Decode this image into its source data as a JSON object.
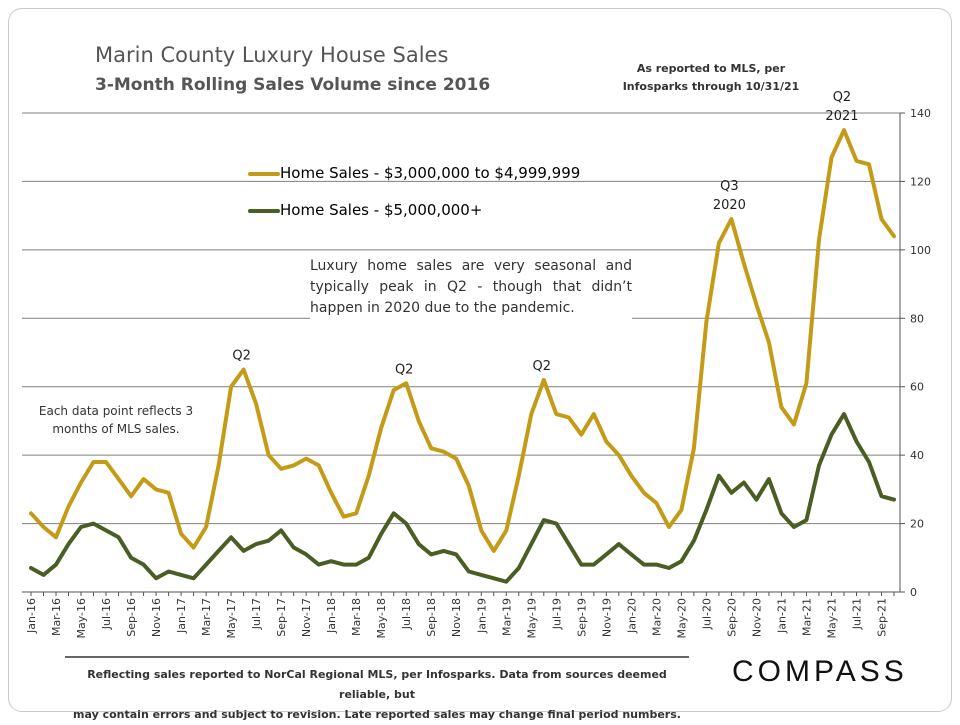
{
  "header": {
    "title": "Marin County Luxury House Sales",
    "subtitle": "3-Month Rolling Sales Volume since 2016",
    "source_note_line1": "As reported to MLS, per",
    "source_note_line2": "Infosparks through 10/31/21"
  },
  "annotations": {
    "seasonal": "Luxury home sales are very seasonal and typically peak in Q2 - though that didn’t happen in 2020 due to the pandemic.",
    "data_point": "Each data point reflects 3 months of MLS sales."
  },
  "footer": {
    "line1": "Reflecting sales reported to NorCal Regional MLS, per Infosparks. Data from sources deemed reliable, but",
    "line2": "may contain errors and subject to revision. Late reported sales may change final period numbers."
  },
  "brand": "COMPASS",
  "chart_data": {
    "type": "line",
    "title": "Marin County Luxury House Sales",
    "subtitle": "3-Month Rolling Sales Volume since 2016",
    "xlabel": "",
    "ylabel": "",
    "ylim": [
      0,
      140
    ],
    "yticks": [
      0,
      20,
      40,
      60,
      80,
      100,
      120,
      140
    ],
    "y_axis_side": "right",
    "grid": "horizontal",
    "legend_position": "top-left",
    "x": [
      "Jan-16",
      "Feb-16",
      "Mar-16",
      "Apr-16",
      "May-16",
      "Jun-16",
      "Jul-16",
      "Aug-16",
      "Sep-16",
      "Oct-16",
      "Nov-16",
      "Dec-16",
      "Jan-17",
      "Feb-17",
      "Mar-17",
      "Apr-17",
      "May-17",
      "Jun-17",
      "Jul-17",
      "Aug-17",
      "Sep-17",
      "Oct-17",
      "Nov-17",
      "Dec-17",
      "Jan-18",
      "Feb-18",
      "Mar-18",
      "Apr-18",
      "May-18",
      "Jun-18",
      "Jul-18",
      "Aug-18",
      "Sep-18",
      "Oct-18",
      "Nov-18",
      "Dec-18",
      "Jan-19",
      "Feb-19",
      "Mar-19",
      "Apr-19",
      "May-19",
      "Jun-19",
      "Jul-19",
      "Aug-19",
      "Sep-19",
      "Oct-19",
      "Nov-19",
      "Dec-19",
      "Jan-20",
      "Feb-20",
      "Mar-20",
      "Apr-20",
      "May-20",
      "Jun-20",
      "Jul-20",
      "Aug-20",
      "Sep-20",
      "Oct-20",
      "Nov-20",
      "Dec-20",
      "Jan-21",
      "Feb-21",
      "Mar-21",
      "Apr-21",
      "May-21",
      "Jun-21",
      "Jul-21",
      "Aug-21",
      "Sep-21",
      "Oct-21"
    ],
    "xtick_labels": [
      "Jan-16",
      "Mar-16",
      "May-16",
      "Jul-16",
      "Sep-16",
      "Nov-16",
      "Jan-17",
      "Mar-17",
      "May-17",
      "Jul-17",
      "Sep-17",
      "Nov-17",
      "Jan-18",
      "Mar-18",
      "May-18",
      "Jul-18",
      "Sep-18",
      "Nov-18",
      "Jan-19",
      "Mar-19",
      "May-19",
      "Jul-19",
      "Sep-19",
      "Nov-19",
      "Jan-20",
      "Mar-20",
      "May-20",
      "Jul-20",
      "Sep-20",
      "Nov-20",
      "Jan-21",
      "Mar-21",
      "May-21",
      "Jul-21",
      "Sep-21"
    ],
    "series": [
      {
        "name": "Home Sales - $3,000,000 to $4,999,999",
        "color": "#c49b16",
        "values": [
          23,
          19,
          16,
          25,
          32,
          38,
          38,
          33,
          28,
          33,
          30,
          29,
          17,
          13,
          19,
          37,
          60,
          65,
          55,
          40,
          36,
          37,
          39,
          37,
          29,
          22,
          23,
          34,
          48,
          59,
          61,
          50,
          42,
          41,
          39,
          31,
          18,
          12,
          18,
          34,
          52,
          62,
          52,
          51,
          46,
          52,
          44,
          40,
          34,
          29,
          26,
          19,
          24,
          42,
          79,
          102,
          109,
          96,
          84,
          73,
          54,
          49,
          61,
          103,
          127,
          135,
          126,
          125,
          109,
          104
        ]
      },
      {
        "name": "Home Sales - $5,000,000+",
        "color": "#4a5e23",
        "values": [
          7,
          5,
          8,
          14,
          19,
          20,
          18,
          16,
          10,
          8,
          4,
          6,
          5,
          4,
          8,
          12,
          16,
          12,
          14,
          15,
          18,
          13,
          11,
          8,
          9,
          8,
          8,
          10,
          17,
          23,
          20,
          14,
          11,
          12,
          11,
          6,
          5,
          4,
          3,
          7,
          14,
          21,
          20,
          14,
          8,
          8,
          11,
          14,
          11,
          8,
          8,
          7,
          9,
          15,
          24,
          34,
          29,
          32,
          27,
          33,
          23,
          19,
          21,
          37,
          46,
          52,
          44,
          38,
          28,
          27
        ]
      }
    ],
    "annotations": [
      {
        "label": "Q2",
        "at": "Jun-17"
      },
      {
        "label": "Q2",
        "at": "Jul-18"
      },
      {
        "label": "Q2",
        "at": "Jun-19"
      },
      {
        "label": "Q3 2020",
        "at": "Sep-20"
      },
      {
        "label": "Q2 2021",
        "at": "Jun-21"
      }
    ]
  }
}
